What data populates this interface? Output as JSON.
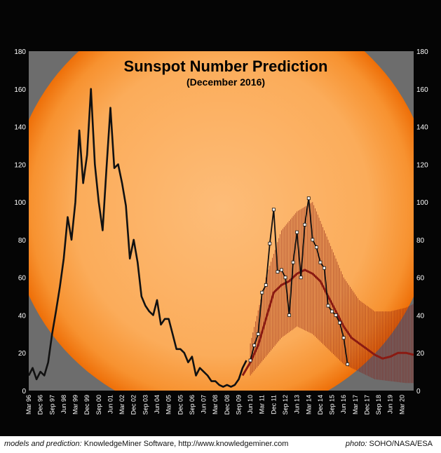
{
  "chart_data": {
    "type": "line",
    "title": "Sunspot Number Prediction",
    "subtitle": "(December 2016)",
    "ylim": [
      0,
      180
    ],
    "yticks": [
      0,
      20,
      40,
      60,
      80,
      100,
      120,
      140,
      160,
      180
    ],
    "xlim": [
      "1996-03",
      "2020-12"
    ],
    "xtick_labels": [
      "Mar 96",
      "Dec 96",
      "Sep 97",
      "Jun 98",
      "Mar 99",
      "Dec 99",
      "Sep 00",
      "Jun 01",
      "Mar 02",
      "Dec 02",
      "Sep 03",
      "Jun 04",
      "Mar 05",
      "Dec 05",
      "Sep 06",
      "Jun 07",
      "Mar 08",
      "Dec 08",
      "Sep 09",
      "Jun 10",
      "Mar 11",
      "Dec 11",
      "Sep 12",
      "Jun 13",
      "Mar 14",
      "Dec 14",
      "Sep 15",
      "Jun 16",
      "Mar 17",
      "Dec 17",
      "Sep 18",
      "Jun 19",
      "Mar 20"
    ],
    "grid": false,
    "series": [
      {
        "role": "observed",
        "color": "#111111",
        "x": [
          "1996-03",
          "1996-06",
          "1996-09",
          "1996-12",
          "1997-03",
          "1997-06",
          "1997-09",
          "1997-12",
          "1998-03",
          "1998-06",
          "1998-09",
          "1998-12",
          "1999-03",
          "1999-06",
          "1999-09",
          "1999-12",
          "2000-03",
          "2000-06",
          "2000-09",
          "2000-12",
          "2001-03",
          "2001-06",
          "2001-09",
          "2001-12",
          "2002-03",
          "2002-06",
          "2002-09",
          "2002-12",
          "2003-03",
          "2003-06",
          "2003-09",
          "2003-12",
          "2004-03",
          "2004-06",
          "2004-09",
          "2004-12",
          "2005-03",
          "2005-06",
          "2005-09",
          "2005-12",
          "2006-03",
          "2006-06",
          "2006-09",
          "2006-12",
          "2007-03",
          "2007-06",
          "2007-09",
          "2007-12",
          "2008-03",
          "2008-06",
          "2008-09",
          "2008-12",
          "2009-03",
          "2009-06",
          "2009-09",
          "2009-12",
          "2010-03"
        ],
        "y": [
          8,
          12,
          6,
          10,
          8,
          15,
          30,
          42,
          55,
          70,
          92,
          80,
          100,
          138,
          110,
          125,
          160,
          120,
          100,
          85,
          118,
          150,
          118,
          120,
          110,
          98,
          70,
          80,
          68,
          50,
          45,
          42,
          40,
          48,
          35,
          38,
          38,
          30,
          22,
          22,
          20,
          15,
          18,
          8,
          12,
          10,
          8,
          5,
          5,
          3,
          2,
          3,
          2,
          3,
          6,
          12,
          16
        ]
      },
      {
        "role": "recent-observed",
        "color": "#ffffff",
        "x": [
          "2010-06",
          "2010-09",
          "2010-12",
          "2011-03",
          "2011-06",
          "2011-09",
          "2011-12",
          "2012-03",
          "2012-06",
          "2012-09",
          "2012-12",
          "2013-03",
          "2013-06",
          "2013-09",
          "2013-12",
          "2014-03",
          "2014-06",
          "2014-09",
          "2014-12",
          "2015-03",
          "2015-06",
          "2015-09",
          "2015-12",
          "2016-03",
          "2016-06",
          "2016-09"
        ],
        "y": [
          16,
          24,
          30,
          52,
          56,
          78,
          96,
          63,
          64,
          60,
          40,
          68,
          84,
          60,
          88,
          102,
          80,
          76,
          68,
          65,
          45,
          42,
          40,
          36,
          28,
          14
        ]
      },
      {
        "role": "prediction-median",
        "color": "#8a1a12",
        "x": [
          "2009-12",
          "2010-06",
          "2010-12",
          "2011-06",
          "2011-12",
          "2012-06",
          "2012-12",
          "2013-06",
          "2013-12",
          "2014-06",
          "2014-12",
          "2015-06",
          "2015-12",
          "2016-06",
          "2016-12",
          "2017-06",
          "2017-12",
          "2018-06",
          "2018-12",
          "2019-06",
          "2019-12",
          "2020-06",
          "2020-12"
        ],
        "y": [
          8,
          15,
          24,
          38,
          52,
          56,
          58,
          62,
          64,
          62,
          58,
          50,
          42,
          34,
          28,
          25,
          22,
          19,
          17,
          18,
          20,
          20,
          19
        ]
      }
    ],
    "prediction_band": {
      "color": "#8a1a12",
      "x": [
        "2010-06",
        "2011-06",
        "2012-06",
        "2013-06",
        "2014-06",
        "2015-06",
        "2016-06",
        "2017-06",
        "2018-06",
        "2019-06",
        "2020-06",
        "2020-12"
      ],
      "low": [
        8,
        18,
        28,
        34,
        30,
        22,
        14,
        10,
        6,
        5,
        4,
        4
      ],
      "high": [
        25,
        60,
        85,
        95,
        100,
        80,
        60,
        48,
        42,
        42,
        44,
        46
      ]
    }
  },
  "colors": {
    "sun_core": "#fbb46a",
    "sun_limb": "#f07a10",
    "panel": "#6d6d6d",
    "outer": "#050505"
  },
  "credits": {
    "left_italic": "models and prediction:",
    "left_text": " KnowledgeMiner Software, http://www.knowledgeminer.com",
    "right_italic": "photo:",
    "right_text": " SOHO/NASA/ESA"
  }
}
